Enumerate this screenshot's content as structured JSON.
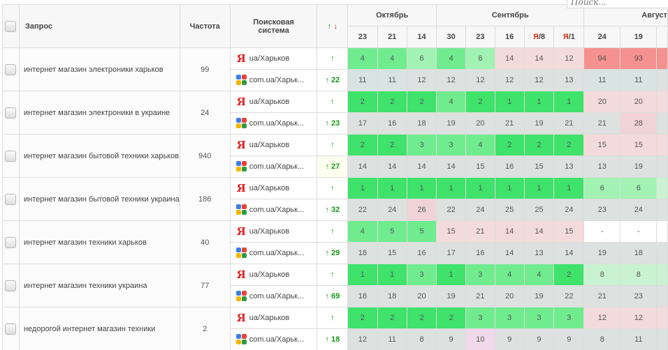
{
  "search": {
    "placeholder": "Поиск..."
  },
  "columns": {
    "query": "Запрос",
    "frequency": "Частота",
    "engine_line1": "Поисковая",
    "engine_line2": "система",
    "trend_up": "↑",
    "trend_down": "↓"
  },
  "months": [
    {
      "label": "Октябрь",
      "span": 3
    },
    {
      "label": "Сентябрь",
      "span": 5
    },
    {
      "label": "Август",
      "span": 3
    }
  ],
  "days": [
    {
      "label": "23"
    },
    {
      "label": "21"
    },
    {
      "label": "14"
    },
    {
      "label": "30"
    },
    {
      "label": "23"
    },
    {
      "label": "16"
    },
    {
      "prefix": "Я",
      "label": "/8"
    },
    {
      "prefix": "Я",
      "label": "/1"
    },
    {
      "label": "24"
    },
    {
      "label": "19"
    },
    {
      "label": ""
    }
  ],
  "colors": {
    "green_strong": "#3fe26a",
    "green_mid": "#70ec8f",
    "green_light": "#a2f2b3",
    "pink": "#f4dbdb",
    "red": "#f5918f",
    "grey": "#dde2e0"
  },
  "rows": [
    {
      "query": "интернет магазин электроники харьков",
      "frequency": "99",
      "yandex": {
        "engine": "ua/Харьков",
        "trend": "↑",
        "values": [
          "4",
          "4",
          "6",
          "4",
          "6",
          "14",
          "14",
          "12",
          "94",
          "93",
          ""
        ],
        "colors": [
          "g2",
          "g2",
          "g3",
          "g2",
          "g3",
          "pink",
          "pink",
          "pink",
          "red",
          "red",
          "red"
        ]
      },
      "google": {
        "engine": "com.ua/Харьк...",
        "trend": "↑ 22",
        "values": [
          "11",
          "11",
          "12",
          "12",
          "12",
          "12",
          "12",
          "13",
          "11",
          "11",
          ""
        ],
        "colors": [
          "bluegrey",
          "bluegrey",
          "grey",
          "grey",
          "grey",
          "grey",
          "grey",
          "grey",
          "bluegrey",
          "bluegrey",
          "grey"
        ]
      }
    },
    {
      "query": "интернет магазин электроники в украине",
      "frequency": "24",
      "yandex": {
        "engine": "ua/Харьков",
        "trend": "↑",
        "values": [
          "2",
          "2",
          "2",
          "4",
          "2",
          "1",
          "1",
          "1",
          "20",
          "20",
          ""
        ],
        "colors": [
          "g1",
          "g1",
          "g1",
          "g2",
          "g1",
          "g1",
          "g1",
          "g1",
          "pink",
          "pink",
          "pink"
        ]
      },
      "google": {
        "engine": "com.ua/Харьк...",
        "trend": "↑ 23",
        "values": [
          "17",
          "16",
          "18",
          "19",
          "20",
          "21",
          "19",
          "21",
          "21",
          "28",
          ""
        ],
        "colors": [
          "grey",
          "grey",
          "grey",
          "grey",
          "grey",
          "grey",
          "grey",
          "grey",
          "grey",
          "pink2",
          "grey"
        ]
      }
    },
    {
      "query": "интернет магазин бытовой техники харьков",
      "frequency": "940",
      "yandex": {
        "engine": "ua/Харьков",
        "trend": "↑",
        "values": [
          "2",
          "2",
          "3",
          "3",
          "4",
          "2",
          "2",
          "2",
          "15",
          "15",
          ""
        ],
        "colors": [
          "g1",
          "g1",
          "g2",
          "g2",
          "g2",
          "g1",
          "g1",
          "g1",
          "pink",
          "pink",
          "pink"
        ]
      },
      "google": {
        "engine": "com.ua/Харьк...",
        "trend": "↑ 27",
        "values": [
          "14",
          "14",
          "14",
          "14",
          "15",
          "16",
          "15",
          "13",
          "13",
          "19",
          ""
        ],
        "colors": [
          "grey",
          "grey",
          "grey",
          "grey",
          "grey",
          "grey",
          "grey",
          "grey",
          "grey",
          "grey",
          "grey"
        ]
      }
    },
    {
      "query": "интернет магазин бытовой техники украина",
      "frequency": "186",
      "yandex": {
        "engine": "ua/Харьков",
        "trend": "↑",
        "values": [
          "1",
          "1",
          "1",
          "1",
          "1",
          "1",
          "1",
          "1",
          "6",
          "6",
          ""
        ],
        "colors": [
          "g1",
          "g1",
          "g1",
          "g1",
          "g1",
          "g1",
          "g1",
          "g1",
          "g3",
          "g3",
          "g4"
        ]
      },
      "google": {
        "engine": "com.ua/Харьк...",
        "trend": "↑ 32",
        "values": [
          "22",
          "24",
          "26",
          "22",
          "24",
          "25",
          "25",
          "24",
          "23",
          "24",
          ""
        ],
        "colors": [
          "grey",
          "grey",
          "pink2",
          "grey",
          "grey",
          "grey",
          "grey",
          "grey",
          "grey",
          "grey",
          "grey"
        ]
      }
    },
    {
      "query": "интернет магазин техники харьков",
      "frequency": "40",
      "yandex": {
        "engine": "ua/Харьков",
        "trend": "↑",
        "values": [
          "4",
          "5",
          "5",
          "15",
          "21",
          "14",
          "14",
          "15",
          "-",
          "-",
          ""
        ],
        "colors": [
          "g2",
          "g2",
          "g2",
          "pink",
          "pink",
          "pink",
          "pink",
          "pink",
          "white",
          "white",
          "white"
        ]
      },
      "google": {
        "engine": "com.ua/Харьк...",
        "trend": "↑ 29",
        "values": [
          "18",
          "15",
          "16",
          "17",
          "16",
          "14",
          "13",
          "14",
          "19",
          "18",
          ""
        ],
        "colors": [
          "grey",
          "grey",
          "grey",
          "grey",
          "grey",
          "grey",
          "grey",
          "grey",
          "grey",
          "grey",
          "grey"
        ]
      }
    },
    {
      "query": "интернет магазин техники украина",
      "frequency": "77",
      "yandex": {
        "engine": "ua/Харьков",
        "trend": "↑",
        "values": [
          "1",
          "1",
          "3",
          "1",
          "3",
          "4",
          "4",
          "2",
          "8",
          "8",
          ""
        ],
        "colors": [
          "g1",
          "g1",
          "g2",
          "g1",
          "g2",
          "g2",
          "g2",
          "g1",
          "g4",
          "g4",
          "g4"
        ]
      },
      "google": {
        "engine": "com.ua/Харьк...",
        "trend": "↑ 69",
        "values": [
          "18",
          "18",
          "20",
          "19",
          "21",
          "20",
          "19",
          "22",
          "21",
          "23",
          ""
        ],
        "colors": [
          "grey",
          "grey",
          "grey",
          "grey",
          "grey",
          "grey",
          "grey",
          "grey",
          "grey",
          "grey",
          "grey"
        ]
      }
    },
    {
      "query": "недорогой интернет магазин техники",
      "frequency": "2",
      "yandex": {
        "engine": "ua/Харьков",
        "trend": "↑",
        "values": [
          "2",
          "2",
          "2",
          "2",
          "3",
          "3",
          "3",
          "3",
          "12",
          "12",
          ""
        ],
        "colors": [
          "g1",
          "g1",
          "g1",
          "g1",
          "g2",
          "g2",
          "g2",
          "g2",
          "pink",
          "pink",
          "pink"
        ]
      },
      "google": {
        "engine": "com.ua/Харьк...",
        "trend": "↑ 18",
        "values": [
          "12",
          "11",
          "8",
          "9",
          "10",
          "9",
          "9",
          "9",
          "8",
          "11",
          ""
        ],
        "colors": [
          "grey",
          "grey",
          "grey",
          "grey",
          "lilac",
          "grey",
          "grey",
          "grey",
          "grey",
          "grey",
          "grey"
        ]
      }
    }
  ]
}
